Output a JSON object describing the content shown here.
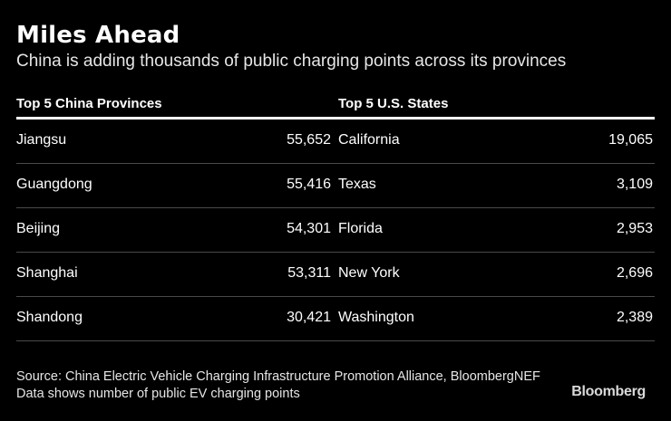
{
  "chart_data": {
    "type": "table",
    "title": "Miles Ahead",
    "subtitle": "China is adding thousands of public charging points across its provinces",
    "columns": {
      "left_header": "Top 5 China Provinces",
      "right_header": "Top 5 U.S. States"
    },
    "rows": [
      {
        "province": "Jiangsu",
        "province_value": "55,652",
        "state": "California",
        "state_value": "19,065"
      },
      {
        "province": "Guangdong",
        "province_value": "55,416",
        "state": "Texas",
        "state_value": "3,109"
      },
      {
        "province": "Beijing",
        "province_value": "54,301",
        "state": "Florida",
        "state_value": "2,953"
      },
      {
        "province": "Shanghai",
        "province_value": "53,311",
        "state": "New York",
        "state_value": "2,696"
      },
      {
        "province": "Shandong",
        "province_value": "30,421",
        "state": "Washington",
        "state_value": "2,389"
      }
    ],
    "source_line1": "Source: China Electric Vehicle Charging Infrastructure Promotion Alliance, BloombergNEF",
    "source_line2": "Data shows number of public EV charging points",
    "brand": "Bloomberg"
  }
}
